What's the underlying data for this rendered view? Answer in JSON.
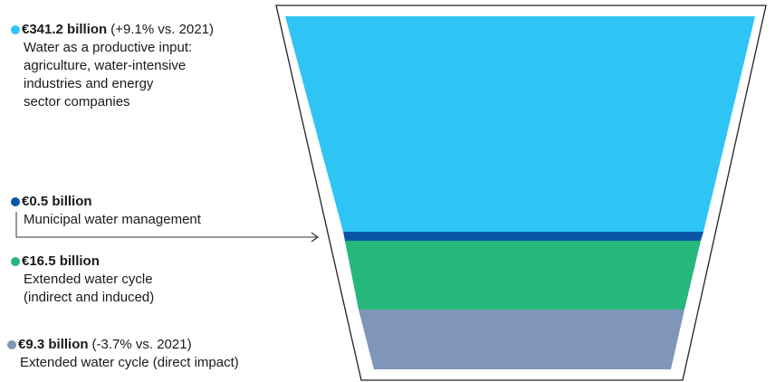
{
  "segments": [
    {
      "id": "productive-input",
      "color": "#2ec5f4",
      "amount": "€341.2 billion",
      "delta": "(+9.1% vs. 2021)",
      "description": [
        "Water as a productive input:",
        "agriculture, water-intensive",
        "industries and energy",
        "sector companies"
      ]
    },
    {
      "id": "municipal",
      "color": "#0b55a6",
      "amount": "€0.5 billion",
      "delta": "",
      "description": [
        "Municipal water management"
      ]
    },
    {
      "id": "extended-indirect",
      "color": "#25b77b",
      "amount": "€16.5 billion",
      "delta": "",
      "description": [
        "Extended water cycle",
        "(indirect and induced)"
      ]
    },
    {
      "id": "extended-direct",
      "color": "#7f96b8",
      "amount": "€9.3 billion",
      "delta": "(-3.7% vs. 2021)",
      "description": [
        "Extended water cycle (direct impact)"
      ]
    }
  ]
}
